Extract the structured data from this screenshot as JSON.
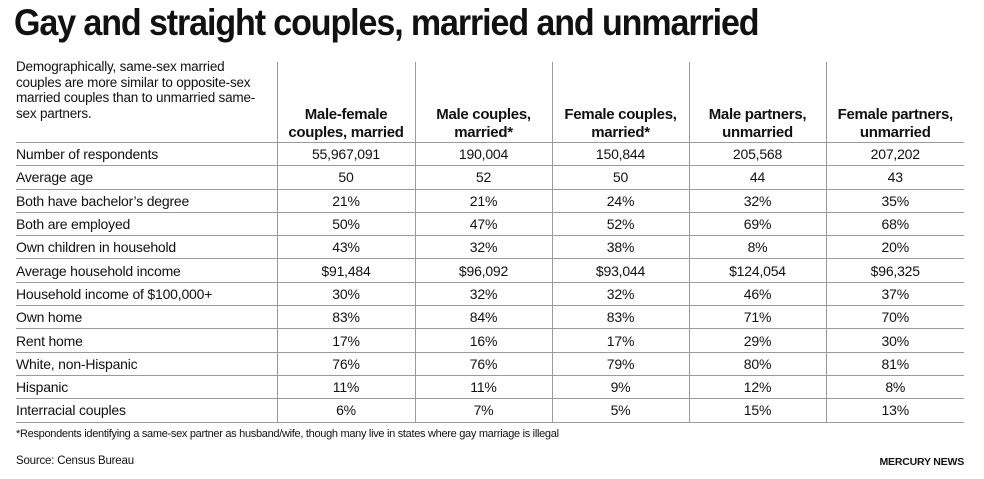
{
  "title": "Gay and straight couples, married and unmarried",
  "intro": "Demographically, same-sex married couples are more similar to opposite-sex married couples than to unmarried same-sex partners.",
  "columns": [
    "Male-female couples, married",
    "Male couples, married*",
    "Female couples, married*",
    "Male partners, unmarried",
    "Female partners, unmarried"
  ],
  "rows": [
    {
      "label": "Number of respondents",
      "values": [
        "55,967,091",
        "190,004",
        "150,844",
        "205,568",
        "207,202"
      ]
    },
    {
      "label": "Average age",
      "values": [
        "50",
        "52",
        "50",
        "44",
        "43"
      ]
    },
    {
      "label": "Both have bachelor’s degree",
      "values": [
        "21%",
        "21%",
        "24%",
        "32%",
        "35%"
      ]
    },
    {
      "label": "Both are employed",
      "values": [
        "50%",
        "47%",
        "52%",
        "69%",
        "68%"
      ]
    },
    {
      "label": "Own children in household",
      "values": [
        "43%",
        "32%",
        "38%",
        "8%",
        "20%"
      ]
    },
    {
      "label": "Average household income",
      "values": [
        "$91,484",
        "$96,092",
        "$93,044",
        "$124,054",
        "$96,325"
      ]
    },
    {
      "label": "Household income of $100,000+",
      "values": [
        "30%",
        "32%",
        "32%",
        "46%",
        "37%"
      ]
    },
    {
      "label": "Own home",
      "values": [
        "83%",
        "84%",
        "83%",
        "71%",
        "70%"
      ]
    },
    {
      "label": "Rent home",
      "values": [
        "17%",
        "16%",
        "17%",
        "29%",
        "30%"
      ]
    },
    {
      "label": "White, non-Hispanic",
      "values": [
        "76%",
        "76%",
        "79%",
        "80%",
        "81%"
      ]
    },
    {
      "label": "Hispanic",
      "values": [
        "11%",
        "11%",
        "9%",
        "12%",
        "8%"
      ]
    },
    {
      "label": "Interracial couples",
      "values": [
        "6%",
        "7%",
        "5%",
        "15%",
        "13%"
      ]
    }
  ],
  "footnote": "*Respondents identifying a same-sex partner as husband/wife, though many live in states where gay marriage is illegal",
  "source": "Source: Census Bureau",
  "brand": "MERCURY NEWS"
}
